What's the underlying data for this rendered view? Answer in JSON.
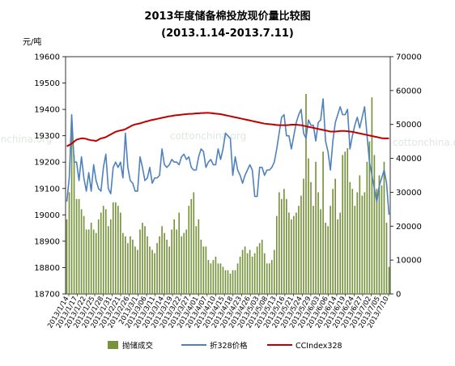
{
  "chart_data": {
    "type": "combo",
    "title": "2013年度储备棉投放现价量比较图",
    "subtitle": "(2013.1.14-2013.7.11)",
    "y_left_label": "元/吨",
    "y_left_range": [
      18700,
      19600
    ],
    "y_left_ticks": [
      "19600",
      "19500",
      "19400",
      "19300",
      "19200",
      "19100",
      "19000",
      "18900",
      "18800",
      "18700"
    ],
    "y_right_range": [
      0,
      70000
    ],
    "y_right_ticks": [
      "70000",
      "60000",
      "50000",
      "40000",
      "30000",
      "20000",
      "10000",
      "0"
    ],
    "x_tick_labels": [
      "2013/1/14",
      "2013/1/17",
      "2013/1/22",
      "2013/1/25",
      "2013/1/28",
      "2013/1/31",
      "2013/2/21",
      "2013/2/26",
      "2013/3/1",
      "2013/3/06",
      "2013/3/11",
      "2013/3/14",
      "2013/3/19",
      "2013/3/22",
      "2013/3/27",
      "2013/4/01",
      "2013/4/07",
      "2013/4/10",
      "2013/4/15",
      "2013/4/18",
      "2013/4/23",
      "2013/4/26",
      "2013/5/03",
      "2013/5/08",
      "2013/5/13",
      "2013/5/16",
      "2013/5/21",
      "2013/5/24",
      "2013/5/29",
      "2013/6/03",
      "2013/6/06",
      "2013/6/14",
      "2013/6/19",
      "2013/6/24",
      "2013/6/27",
      "2013/7/02",
      "2013/7/05",
      "2013/7/10"
    ],
    "series": [
      {
        "name": "抛储成交",
        "axis": "right",
        "kind": "bar",
        "color": "#77933c",
        "values": [
          22000,
          30000,
          50000,
          41000,
          28000,
          28000,
          25000,
          23000,
          19000,
          19000,
          21000,
          19000,
          18000,
          22000,
          24000,
          26000,
          25000,
          20000,
          22000,
          27000,
          27000,
          26000,
          24000,
          18000,
          17000,
          15000,
          17000,
          16000,
          14000,
          13000,
          19000,
          21000,
          20000,
          17000,
          14000,
          13000,
          12000,
          15000,
          17000,
          20000,
          18000,
          16000,
          14000,
          19000,
          22000,
          19000,
          24000,
          17000,
          18000,
          19000,
          26000,
          28000,
          30000,
          20000,
          22000,
          16000,
          14000,
          14000,
          10000,
          9000,
          10000,
          11000,
          9000,
          9000,
          8000,
          7000,
          7000,
          6000,
          7000,
          7000,
          9000,
          11000,
          13000,
          14000,
          12000,
          13000,
          11000,
          12000,
          14000,
          15000,
          16000,
          12000,
          9000,
          9000,
          10000,
          13000,
          23000,
          30000,
          28000,
          31000,
          28000,
          24000,
          22000,
          23000,
          24000,
          26000,
          29000,
          34000,
          59000,
          40000,
          33000,
          26000,
          39000,
          30000,
          25000,
          42000,
          21000,
          20000,
          26000,
          31000,
          34000,
          22000,
          24000,
          41000,
          42000,
          43000,
          33000,
          31000,
          26000,
          30000,
          35000,
          29000,
          30000,
          39000,
          45000,
          58000,
          41000,
          31000,
          35000,
          32000,
          39000,
          21000,
          8000
        ]
      },
      {
        "name": "折328价格",
        "axis": "left",
        "kind": "line",
        "color": "#4f81bd",
        "values": [
          19050,
          19140,
          19380,
          19200,
          19200,
          19130,
          19220,
          19140,
          19090,
          19160,
          19090,
          19190,
          19130,
          19100,
          19090,
          19180,
          19230,
          19100,
          19080,
          19180,
          19200,
          19180,
          19200,
          19140,
          19310,
          19180,
          19130,
          19120,
          19090,
          19090,
          19220,
          19180,
          19130,
          19140,
          19180,
          19120,
          19140,
          19140,
          19150,
          19250,
          19190,
          19180,
          19190,
          19210,
          19200,
          19200,
          19190,
          19220,
          19230,
          19210,
          19220,
          19180,
          19170,
          19170,
          19220,
          19250,
          19240,
          19180,
          19200,
          19210,
          19190,
          19190,
          19250,
          19210,
          19250,
          19310,
          19300,
          19290,
          19150,
          19220,
          19170,
          19150,
          19120,
          19150,
          19170,
          19190,
          19170,
          19070,
          19070,
          19180,
          19180,
          19150,
          19170,
          19170,
          19180,
          19200,
          19250,
          19310,
          19370,
          19380,
          19300,
          19300,
          19250,
          19300,
          19350,
          19380,
          19400,
          19310,
          19290,
          19360,
          19340,
          19340,
          19280,
          19350,
          19360,
          19440,
          19280,
          19240,
          19170,
          19280,
          19350,
          19380,
          19410,
          19380,
          19380,
          19400,
          19250,
          19300,
          19340,
          19370,
          19330,
          19370,
          19410,
          19300,
          19200,
          19150,
          19100,
          19050,
          19110,
          19140,
          19170,
          19120,
          19000
        ]
      },
      {
        "name": "CCIndex328",
        "axis": "left",
        "kind": "line",
        "color": "#c00000",
        "values": [
          19260,
          19265,
          19270,
          19278,
          19285,
          19288,
          19290,
          19290,
          19288,
          19285,
          19283,
          19282,
          19280,
          19285,
          19290,
          19292,
          19295,
          19300,
          19305,
          19310,
          19315,
          19318,
          19320,
          19322,
          19325,
          19330,
          19335,
          19340,
          19343,
          19345,
          19347,
          19350,
          19353,
          19355,
          19358,
          19360,
          19362,
          19364,
          19366,
          19368,
          19370,
          19372,
          19374,
          19375,
          19377,
          19378,
          19379,
          19380,
          19381,
          19382,
          19383,
          19383,
          19384,
          19385,
          19385,
          19386,
          19386,
          19387,
          19387,
          19386,
          19385,
          19384,
          19383,
          19382,
          19380,
          19378,
          19376,
          19374,
          19372,
          19370,
          19368,
          19366,
          19364,
          19362,
          19360,
          19358,
          19356,
          19354,
          19352,
          19350,
          19348,
          19346,
          19345,
          19344,
          19343,
          19342,
          19341,
          19340,
          19340,
          19340,
          19340,
          19341,
          19342,
          19342,
          19342,
          19341,
          19340,
          19338,
          19336,
          19334,
          19332,
          19330,
          19328,
          19326,
          19324,
          19322,
          19320,
          19318,
          19316,
          19316,
          19316,
          19317,
          19318,
          19318,
          19318,
          19317,
          19316,
          19315,
          19313,
          19311,
          19309,
          19307,
          19305,
          19303,
          19301,
          19299,
          19297,
          19295,
          19293,
          19291,
          19290,
          19290,
          19290
        ]
      }
    ],
    "watermark": "cottonchina.org",
    "grid": false,
    "legend_position": "bottom"
  }
}
